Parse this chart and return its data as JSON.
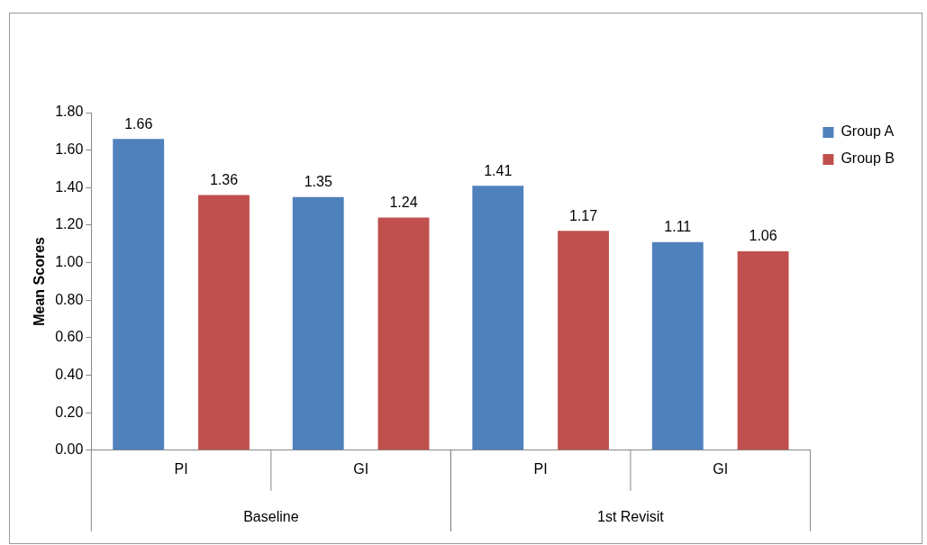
{
  "chart_data": {
    "type": "bar",
    "ylabel": "Mean Scores",
    "categories": [
      "PI",
      "GI",
      "PI",
      "GI"
    ],
    "series": [
      {
        "name": "Group A",
        "color": "#4f81bd",
        "values": [
          1.66,
          1.35,
          1.41,
          1.11
        ]
      },
      {
        "name": "Group B",
        "color": "#c0504d",
        "values": [
          1.36,
          1.24,
          1.17,
          1.06
        ]
      }
    ],
    "ylim": [
      0,
      1.8
    ],
    "yticks": [
      {
        "value": 0,
        "label": "0.00"
      },
      {
        "value": 0.2,
        "label": "0.20"
      },
      {
        "value": 0.4,
        "label": "0.40"
      },
      {
        "value": 0.6,
        "label": "0.60"
      },
      {
        "value": 0.8,
        "label": "0.80"
      },
      {
        "value": 1,
        "label": "1.00"
      },
      {
        "value": 1.2,
        "label": "1.20"
      },
      {
        "value": 1.4,
        "label": "1.40"
      },
      {
        "value": 1.6,
        "label": "1.60"
      },
      {
        "value": 1.8,
        "label": "1.80"
      }
    ],
    "annotations": [
      "Baseline",
      "1st Revisit"
    ],
    "data_labels": true,
    "grid": false,
    "legend": "top right"
  }
}
